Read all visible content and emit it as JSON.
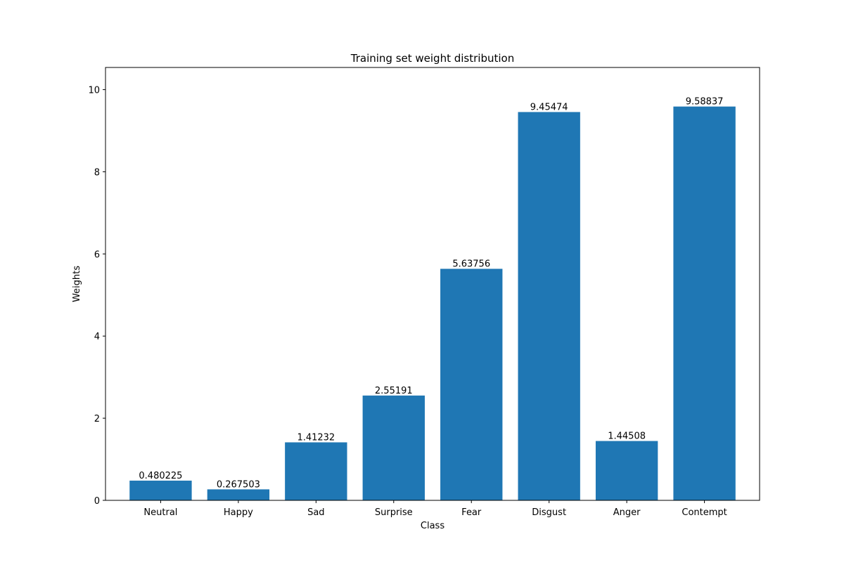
{
  "chart_data": {
    "type": "bar",
    "title": "Training set weight distribution",
    "xlabel": "Class",
    "ylabel": "Weights",
    "categories": [
      "Neutral",
      "Happy",
      "Sad",
      "Surprise",
      "Fear",
      "Disgust",
      "Anger",
      "Contempt"
    ],
    "values": [
      0.480225,
      0.267503,
      1.41232,
      2.55191,
      5.63756,
      9.45474,
      1.44508,
      9.58837
    ],
    "value_labels": [
      "0.480225",
      "0.267503",
      "1.41232",
      "2.55191",
      "5.63756",
      "9.45474",
      "1.44508",
      "9.58837"
    ],
    "ylim": [
      0,
      10.54
    ],
    "yticks": [
      0,
      2,
      4,
      6,
      8,
      10
    ],
    "grid": false,
    "legend": "none",
    "bar_color": "#1f77b4"
  }
}
